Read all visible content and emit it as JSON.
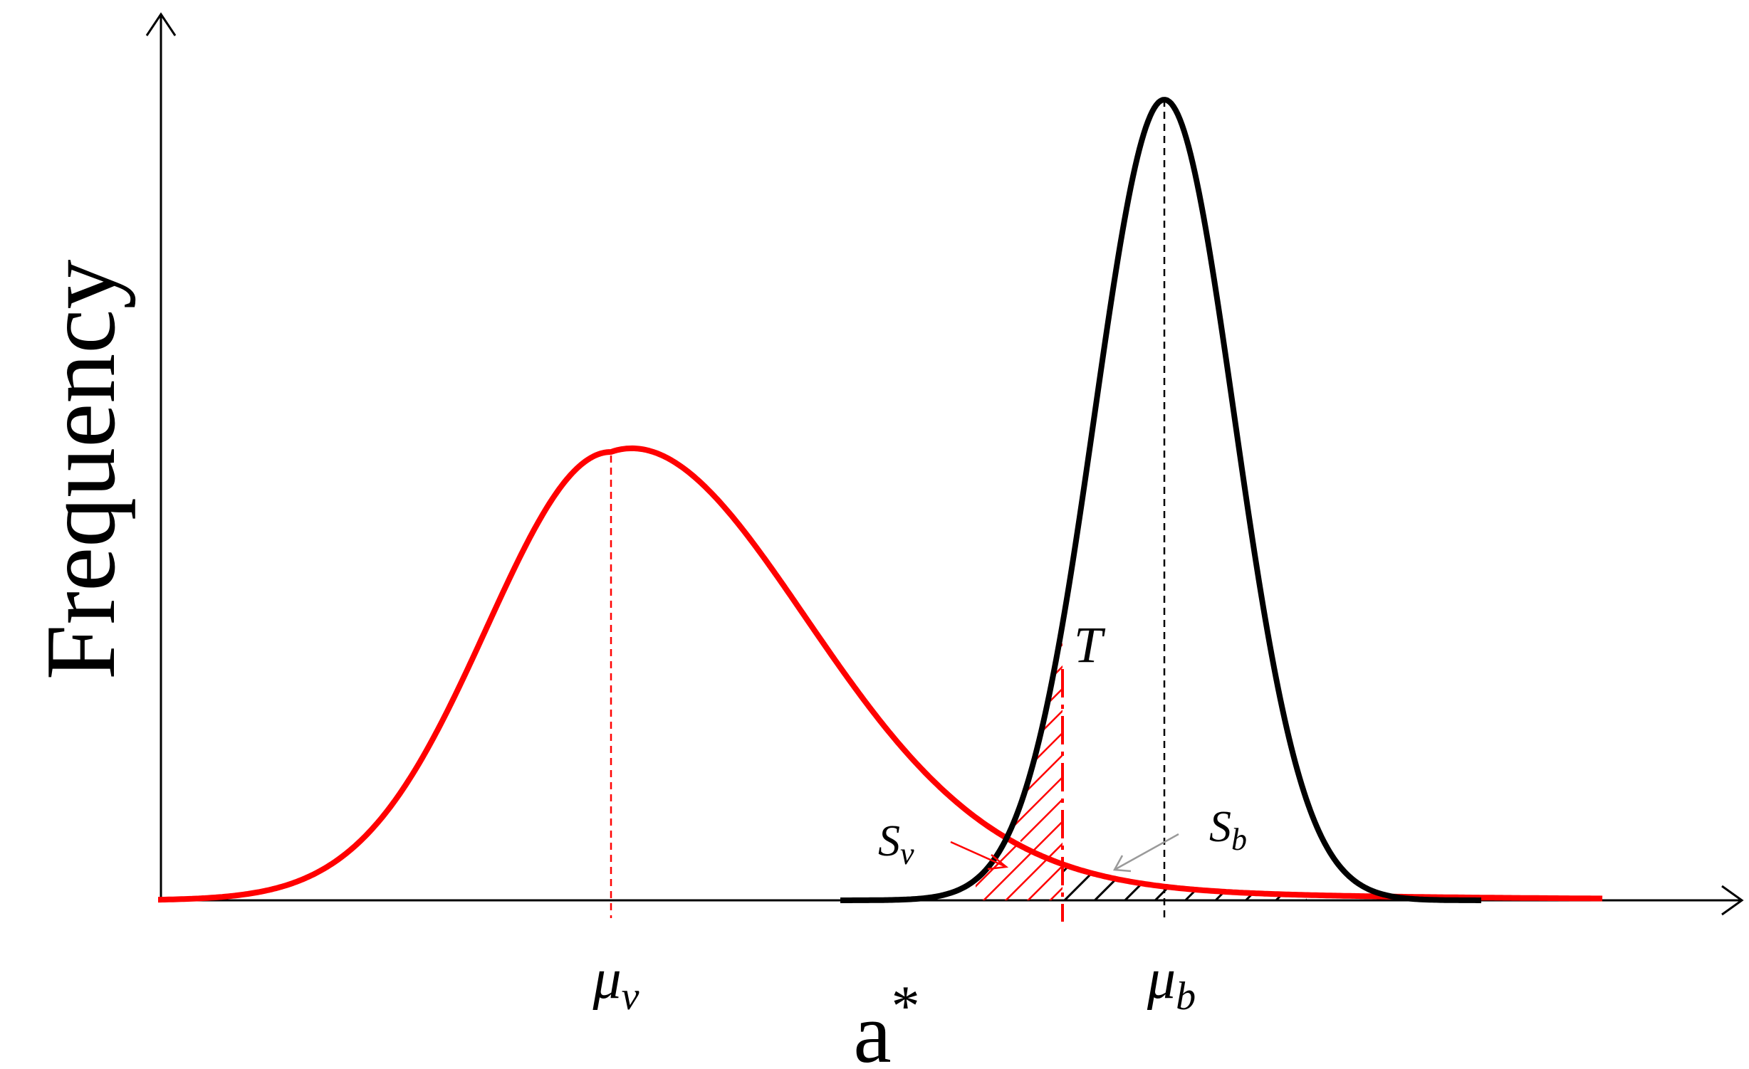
{
  "axes": {
    "y_label": "Frequency",
    "x_label": "a",
    "x_label_superscript": "*"
  },
  "curves": {
    "vegetation": {
      "color": "#ff0000",
      "shape": "right-skewed bell",
      "relative_peak": 0.56
    },
    "background": {
      "color": "#000000",
      "shape": "narrow bell",
      "relative_peak": 1.0
    }
  },
  "labels": {
    "threshold": "T",
    "mu_v": {
      "base": "μ",
      "sub": "v"
    },
    "mu_b": {
      "base": "μ",
      "sub": "b"
    },
    "s_v": {
      "base": "S",
      "sub": "v"
    },
    "s_b": {
      "base": "S",
      "sub": "b"
    }
  },
  "regions": {
    "s_v_hatch_color": "#ff0000",
    "s_b_hatch_color": "#000000"
  }
}
